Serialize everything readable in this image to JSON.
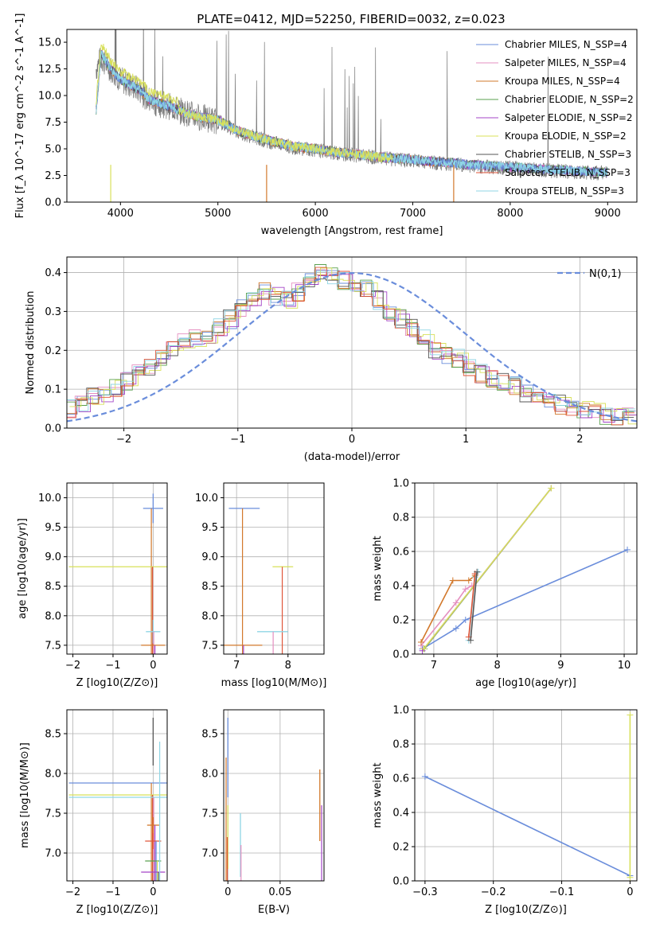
{
  "figure_title": "PLATE=0412, MJD=52250, FIBERID=0032, z=0.023",
  "series_colors": [
    "#6a8ddb",
    "#e58fc0",
    "#d2782b",
    "#5aa04f",
    "#a445c7",
    "#d8e05a",
    "#555555",
    "#e0563a",
    "#8fd6e5"
  ],
  "chart_data": [
    {
      "id": "spectrum",
      "type": "line",
      "title": "PLATE=0412, MJD=52250, FIBERID=0032, z=0.023",
      "xlabel": "wavelength [Angstrom, rest frame]",
      "ylabel": "Flux [f_λ 10^-17 erg cm^-2 s^-1 A^-1]",
      "xlim": [
        3450,
        9300
      ],
      "ylim": [
        0,
        16.2
      ],
      "xticks": [
        4000,
        5000,
        6000,
        7000,
        8000,
        9000
      ],
      "yticks": [
        0.0,
        2.5,
        5.0,
        7.5,
        10.0,
        12.5,
        15.0
      ],
      "grid": false,
      "legend_position": "top-right",
      "legend": [
        "Chabrier MILES, N_SSP=4",
        "Salpeter MILES, N_SSP=4",
        "Kroupa MILES, N_SSP=4",
        "Chabrier ELODIE, N_SSP=2",
        "Salpeter ELODIE, N_SSP=2",
        "Kroupa ELODIE, N_SSP=2",
        "Chabrier STELIB, N_SSP=3",
        "Salpeter STELIB, N_SSP=3",
        "Kroupa STELIB, N_SSP=3"
      ],
      "data_spectrum": {
        "x": [
          3750,
          3800,
          3900,
          4000,
          4100,
          4200,
          4300,
          4400,
          4500,
          4600,
          4700,
          4800,
          4900,
          5000,
          5200,
          5400,
          5600,
          5800,
          6000,
          6200,
          6400,
          6600,
          6800,
          7000,
          7200,
          7400,
          7600,
          7800,
          8000,
          8500,
          9000
        ],
        "y": [
          12.5,
          13.5,
          12.5,
          11.5,
          11.0,
          10.5,
          9.5,
          9.2,
          9.0,
          8.6,
          8.3,
          8.0,
          7.8,
          7.6,
          6.6,
          6.0,
          5.5,
          5.1,
          4.9,
          4.6,
          4.4,
          4.2,
          4.0,
          3.9,
          3.7,
          3.6,
          3.4,
          3.3,
          3.2,
          2.9,
          2.7
        ]
      },
      "model_spectrum": {
        "x": [
          3750,
          3800,
          3900,
          4000,
          4100,
          4200,
          4300,
          4400,
          4500,
          4600,
          4700,
          4800,
          4900,
          5000,
          5200,
          5400,
          5600,
          5800,
          6000,
          6200,
          6400,
          6600,
          6800,
          7000,
          7200,
          7400,
          7600,
          7800,
          8000,
          8500,
          9000
        ],
        "y": [
          8.5,
          14.0,
          12.5,
          11.5,
          11.0,
          10.5,
          9.6,
          9.3,
          9.0,
          8.6,
          8.3,
          8.0,
          7.9,
          7.7,
          6.7,
          6.1,
          5.6,
          5.2,
          5.0,
          4.7,
          4.5,
          4.3,
          4.1,
          4.0,
          3.8,
          3.7,
          3.5,
          3.4,
          3.3,
          3.0,
          2.8
        ]
      }
    },
    {
      "id": "residuals",
      "type": "line",
      "xlabel": "(data-model)/error",
      "ylabel": "Normed distribution",
      "xlim": [
        -2.5,
        2.5
      ],
      "ylim": [
        0,
        0.44
      ],
      "xticks": [
        -2,
        -1,
        0,
        1,
        2
      ],
      "yticks": [
        0.0,
        0.1,
        0.2,
        0.3,
        0.4
      ],
      "grid": true,
      "legend_position": "top-right",
      "legend": [
        "N(0,1)"
      ],
      "histogram_centers": [
        -2.45,
        -2.35,
        -2.25,
        -2.15,
        -2.05,
        -1.95,
        -1.85,
        -1.75,
        -1.65,
        -1.55,
        -1.45,
        -1.35,
        -1.25,
        -1.15,
        -1.05,
        -0.95,
        -0.85,
        -0.75,
        -0.65,
        -0.55,
        -0.45,
        -0.35,
        -0.25,
        -0.15,
        -0.05,
        0.05,
        0.15,
        0.25,
        0.35,
        0.45,
        0.55,
        0.65,
        0.75,
        0.85,
        0.95,
        1.05,
        1.15,
        1.25,
        1.35,
        1.45,
        1.55,
        1.65,
        1.75,
        1.85,
        1.95,
        2.05,
        2.15,
        2.25,
        2.35,
        2.45
      ],
      "histogram_density": [
        0.05,
        0.06,
        0.08,
        0.09,
        0.1,
        0.12,
        0.14,
        0.16,
        0.18,
        0.2,
        0.22,
        0.23,
        0.24,
        0.26,
        0.28,
        0.31,
        0.33,
        0.35,
        0.34,
        0.33,
        0.35,
        0.38,
        0.4,
        0.39,
        0.38,
        0.37,
        0.36,
        0.33,
        0.3,
        0.28,
        0.26,
        0.23,
        0.2,
        0.19,
        0.18,
        0.16,
        0.14,
        0.13,
        0.12,
        0.11,
        0.09,
        0.08,
        0.07,
        0.06,
        0.05,
        0.05,
        0.04,
        0.03,
        0.03,
        0.03
      ],
      "gaussian_mean": 0,
      "gaussian_sigma": 1
    },
    {
      "id": "age_vs_Z",
      "type": "scatter",
      "xlabel": "Z [log10(Z/Z⊙)]",
      "ylabel": "age [log10(age/yr)]",
      "xlim": [
        -2.15,
        0.35
      ],
      "ylim": [
        7.35,
        10.25
      ],
      "xticks": [
        -2,
        -1,
        0
      ],
      "yticks": [
        7.5,
        8.0,
        8.5,
        9.0,
        9.5,
        10.0
      ],
      "grid": true,
      "points": [
        {
          "x": 0.0,
          "y": 9.82,
          "xerr": 0.25,
          "yerr": 0.25
        },
        {
          "x": 0.0,
          "y": 8.83,
          "xerr": 2.1,
          "yerr": 0.0
        },
        {
          "x": 0.0,
          "y": 7.73,
          "xerr": 0.18,
          "yerr": 0.2
        },
        {
          "x": 0.0,
          "y": 7.5,
          "xerr": 0.3,
          "yerr": 0.0
        }
      ]
    },
    {
      "id": "age_vs_mass",
      "type": "scatter",
      "xlabel": "mass [log10(M/M⊙)]",
      "ylabel": "",
      "xlim": [
        6.75,
        8.7
      ],
      "ylim": [
        7.35,
        10.25
      ],
      "xticks": [
        7,
        8
      ],
      "yticks": [
        7.5,
        8.0,
        8.5,
        9.0,
        9.5,
        10.0
      ],
      "grid": true,
      "points": [
        {
          "x": 7.15,
          "y": 9.82,
          "xerr": 0.3,
          "yerr": 0.0
        },
        {
          "x": 7.9,
          "y": 8.83,
          "xerr": 0.2,
          "yerr": 0.0
        },
        {
          "x": 7.7,
          "y": 7.73,
          "xerr": 0.3,
          "yerr": 0.0
        },
        {
          "x": 7.1,
          "y": 7.5,
          "xerr": 0.4,
          "yerr": 0.0
        }
      ]
    },
    {
      "id": "massweight_vs_age",
      "type": "line",
      "xlabel": "age [log10(age/yr)]",
      "ylabel": "mass weight",
      "xlim": [
        6.7,
        10.2
      ],
      "ylim": [
        0,
        1.0
      ],
      "xticks": [
        7,
        8,
        9,
        10
      ],
      "yticks": [
        0.0,
        0.2,
        0.4,
        0.6,
        0.8,
        1.0
      ],
      "grid": true,
      "series": [
        {
          "x": [
            6.82,
            7.35,
            7.5,
            10.05
          ],
          "y": [
            0.03,
            0.15,
            0.2,
            0.61
          ]
        },
        {
          "x": [
            6.8,
            7.35,
            7.5,
            7.6
          ],
          "y": [
            0.05,
            0.3,
            0.38,
            0.4
          ]
        },
        {
          "x": [
            6.8,
            7.3,
            7.55,
            7.65
          ],
          "y": [
            0.07,
            0.43,
            0.43,
            0.46
          ]
        },
        {
          "x": [
            6.85,
            8.85
          ],
          "y": [
            0.03,
            0.97
          ]
        },
        {
          "x": [
            6.82,
            8.85
          ],
          "y": [
            0.02,
            0.97
          ]
        },
        {
          "x": [
            6.84,
            8.85
          ],
          "y": [
            0.03,
            0.97
          ]
        },
        {
          "x": [
            7.55,
            7.65,
            7.7
          ],
          "y": [
            0.08,
            0.45,
            0.48
          ]
        },
        {
          "x": [
            7.55,
            7.65
          ],
          "y": [
            0.1,
            0.47
          ]
        },
        {
          "x": [
            7.58,
            7.68
          ],
          "y": [
            0.08,
            0.48
          ]
        }
      ]
    },
    {
      "id": "mass_vs_Z",
      "type": "scatter",
      "xlabel": "Z [log10(Z/Z⊙)]",
      "ylabel": "mass [log10(M/M⊙)]",
      "xlim": [
        -2.15,
        0.35
      ],
      "ylim": [
        6.65,
        8.8
      ],
      "xticks": [
        -2,
        -1,
        0
      ],
      "yticks": [
        7.0,
        7.5,
        8.0,
        8.5
      ],
      "grid": true,
      "points": [
        {
          "x": 0.0,
          "y": 7.88,
          "xerr": 2.1,
          "yerr": 0.0
        },
        {
          "x": 0.0,
          "y": 7.73,
          "xerr": 2.1,
          "yerr": 0.0
        },
        {
          "x": 0.0,
          "y": 7.7,
          "xerr": 2.1,
          "yerr": 0.0
        },
        {
          "x": 0.0,
          "y": 7.35,
          "xerr": 0.15,
          "yerr": 0.1
        },
        {
          "x": 0.0,
          "y": 7.15,
          "xerr": 0.2,
          "yerr": 0.1
        },
        {
          "x": 0.0,
          "y": 6.9,
          "xerr": 0.2,
          "yerr": 0.0
        },
        {
          "x": 0.0,
          "y": 6.76,
          "xerr": 0.3,
          "yerr": 0.0
        },
        {
          "x": 0.0,
          "y": 8.4,
          "xerr": 0.0,
          "yerr": 0.3
        }
      ]
    },
    {
      "id": "mass_vs_EBV",
      "type": "scatter",
      "xlabel": "E(B-V)",
      "ylabel": "",
      "xlim": [
        -0.004,
        0.092
      ],
      "ylim": [
        6.65,
        8.8
      ],
      "xticks": [
        0.0,
        0.05
      ],
      "yticks": [
        7.0,
        7.5,
        8.0,
        8.5
      ],
      "grid": true,
      "points": [
        {
          "x": 0.0,
          "y": 8.2,
          "xerr": 0.0,
          "yerr": 0.5
        },
        {
          "x": 0.0,
          "y": 7.2,
          "xerr": 0.0,
          "yerr": 0.4
        },
        {
          "x": 0.012,
          "y": 7.1,
          "xerr": 0.0,
          "yerr": 0.4
        },
        {
          "x": 0.088,
          "y": 7.6,
          "xerr": 0.0,
          "yerr": 0.45
        }
      ]
    },
    {
      "id": "massweight_vs_Z",
      "type": "line",
      "xlabel": "Z [log10(Z/Z⊙)]",
      "ylabel": "mass weight",
      "xlim": [
        -0.315,
        0.01
      ],
      "ylim": [
        0,
        1.0
      ],
      "xticks": [
        -0.3,
        -0.2,
        -0.1,
        0.0
      ],
      "yticks": [
        0.0,
        0.2,
        0.4,
        0.6,
        0.8,
        1.0
      ],
      "grid": true,
      "series": [
        {
          "x": [
            -0.3,
            0.0
          ],
          "y": [
            0.61,
            0.03
          ]
        },
        {
          "x": [
            0.0,
            0.0
          ],
          "y": [
            0.02,
            0.97
          ]
        }
      ]
    }
  ]
}
